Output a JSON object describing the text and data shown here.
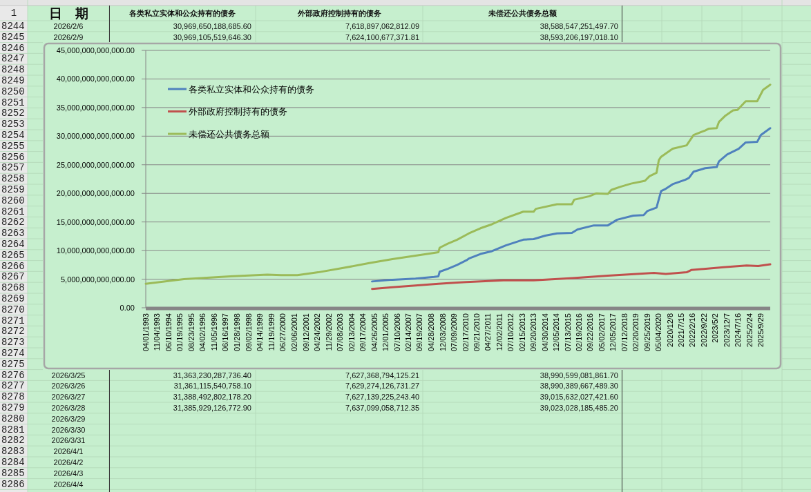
{
  "chart_data": {
    "type": "line",
    "xlim": [
      "1993-04-01",
      "2026-03-28"
    ],
    "xticks": [
      {
        "value": "1993-04-01",
        "label": "04/01/1993"
      },
      {
        "value": "1993-11-04",
        "label": "11/04/1993"
      },
      {
        "value": "1994-06-10",
        "label": "06/10/1994"
      },
      {
        "value": "1995-01-19",
        "label": "01/19/1995"
      },
      {
        "value": "1995-08-23",
        "label": "08/23/1995"
      },
      {
        "value": "1996-04-02",
        "label": "04/02/1996"
      },
      {
        "value": "1996-11-05",
        "label": "11/05/1996"
      },
      {
        "value": "1997-06-16",
        "label": "06/16/1997"
      },
      {
        "value": "1998-01-28",
        "label": "01/28/1998"
      },
      {
        "value": "1998-09-02",
        "label": "09/02/1998"
      },
      {
        "value": "1999-04-14",
        "label": "04/14/1999"
      },
      {
        "value": "1999-11-19",
        "label": "11/19/1999"
      },
      {
        "value": "2000-06-27",
        "label": "06/27/2000"
      },
      {
        "value": "2001-02-06",
        "label": "02/06/2001"
      },
      {
        "value": "2001-09-12",
        "label": "09/12/2001"
      },
      {
        "value": "2002-04-24",
        "label": "04/24/2002"
      },
      {
        "value": "2002-11-29",
        "label": "11/29/2002"
      },
      {
        "value": "2003-07-08",
        "label": "07/08/2003"
      },
      {
        "value": "2004-02-13",
        "label": "02/13/2004"
      },
      {
        "value": "2004-09-17",
        "label": "09/17/2004"
      },
      {
        "value": "2005-04-26",
        "label": "04/26/2005"
      },
      {
        "value": "2005-12-01",
        "label": "12/01/2005"
      },
      {
        "value": "2006-07-10",
        "label": "07/10/2006"
      },
      {
        "value": "2007-02-14",
        "label": "02/14/2007"
      },
      {
        "value": "2007-09-19",
        "label": "09/19/2007"
      },
      {
        "value": "2008-04-28",
        "label": "04/28/2008"
      },
      {
        "value": "2008-12-03",
        "label": "12/03/2008"
      },
      {
        "value": "2009-07-09",
        "label": "07/09/2009"
      },
      {
        "value": "2010-02-17",
        "label": "02/17/2010"
      },
      {
        "value": "2010-09-21",
        "label": "09/21/2010"
      },
      {
        "value": "2011-04-27",
        "label": "04/27/2011"
      },
      {
        "value": "2011-12-02",
        "label": "12/02/2011"
      },
      {
        "value": "2012-07-10",
        "label": "07/10/2012"
      },
      {
        "value": "2013-02-15",
        "label": "02/15/2013"
      },
      {
        "value": "2013-09-20",
        "label": "09/20/2013"
      },
      {
        "value": "2014-04-30",
        "label": "04/30/2014"
      },
      {
        "value": "2014-12-05",
        "label": "12/05/2014"
      },
      {
        "value": "2015-07-13",
        "label": "07/13/2015"
      },
      {
        "value": "2016-02-19",
        "label": "02/19/2016"
      },
      {
        "value": "2016-09-22",
        "label": "09/22/2016"
      },
      {
        "value": "2017-05-02",
        "label": "05/02/2017"
      },
      {
        "value": "2017-12-05",
        "label": "12/05/2017"
      },
      {
        "value": "2018-07-12",
        "label": "07/12/2018"
      },
      {
        "value": "2019-02-20",
        "label": "02/20/2019"
      },
      {
        "value": "2019-09-25",
        "label": "09/25/2019"
      },
      {
        "value": "2020-05-04",
        "label": "05/04/2020"
      },
      {
        "value": "2020-12-08",
        "label": "2020/12/8"
      },
      {
        "value": "2021-07-15",
        "label": "2021/7/15"
      },
      {
        "value": "2022-02-16",
        "label": "2022/2/16"
      },
      {
        "value": "2022-09-22",
        "label": "2022/9/22"
      },
      {
        "value": "2023-05-02",
        "label": "2023/5/2"
      },
      {
        "value": "2023-12-07",
        "label": "2023/12/7"
      },
      {
        "value": "2024-07-16",
        "label": "2024/7/16"
      },
      {
        "value": "2025-02-24",
        "label": "2025/2/24"
      },
      {
        "value": "2025-09-29",
        "label": "2025/9/29"
      }
    ],
    "ylim": [
      0,
      45000000000000
    ],
    "yticks": [
      {
        "value": 0,
        "label": "0.00"
      },
      {
        "value": 5000000000000,
        "label": "5,000,000,000,000.00"
      },
      {
        "value": 10000000000000,
        "label": "10,000,000,000,000.00"
      },
      {
        "value": 15000000000000,
        "label": "15,000,000,000,000.00"
      },
      {
        "value": 20000000000000,
        "label": "20,000,000,000,000.00"
      },
      {
        "value": 25000000000000,
        "label": "25,000,000,000,000.00"
      },
      {
        "value": 30000000000000,
        "label": "30,000,000,000,000.00"
      },
      {
        "value": 35000000000000,
        "label": "35,000,000,000,000.00"
      },
      {
        "value": 40000000000000,
        "label": "40,000,000,000,000.00"
      },
      {
        "value": 45000000000000,
        "label": "45,000,000,000,000.00"
      }
    ],
    "grid": "y",
    "legend": "top left",
    "series": [
      {
        "name": "各类私立实体和公众持有的债务",
        "color": "#4f81bd",
        "x": [
          "2005-03-15",
          "2006-04-12",
          "2007-07-02",
          "2008-06-25",
          "2008-09-15",
          "2008-10-10",
          "2009-03-15",
          "2009-09-13",
          "2010-03-10",
          "2010-04-27",
          "2010-12-06",
          "2011-07-16",
          "2012-04-08",
          "2013-03-11",
          "2013-09-27",
          "2014-05-08",
          "2014-12-20",
          "2015-10-05",
          "2016-01-22",
          "2016-12-02",
          "2017-08-29",
          "2018-02-24",
          "2019-01-01",
          "2019-07-20",
          "2019-09-28",
          "2020-03-25",
          "2020-06-21",
          "2020-09-20",
          "2021-01-30",
          "2021-10-05",
          "2021-12-10",
          "2022-03-11",
          "2022-10-20",
          "2023-05-30",
          "2023-07-13",
          "2023-12-17",
          "2024-07-27",
          "2024-12-09",
          "2025-07-19",
          "2025-09-27",
          "2026-03-28"
        ],
        "values": [
          4600000000000.0,
          4900000000000.0,
          5100000000000.0,
          5400000000000.0,
          5500000000000.0,
          6300000000000.0,
          6800000000000.0,
          7500000000000.0,
          8300000000000.0,
          8600000000000.0,
          9400000000000.0,
          9900000000000.0,
          10900000000000.0,
          11900000000000.0,
          12000000000000.0,
          12600000000000.0,
          13000000000000.0,
          13100000000000.0,
          13700000000000.0,
          14400000000000.0,
          14400000000000.0,
          15400000000000.0,
          16100000000000.0,
          16200000000000.0,
          16900000000000.0,
          17500000000000.0,
          20400000000000.0,
          20800000000000.0,
          21600000000000.0,
          22400000000000.0,
          22700000000000.0,
          23800000000000.0,
          24400000000000.0,
          24600000000000.0,
          25600000000000.0,
          26800000000000.0,
          27800000000000.0,
          28900000000000.0,
          29000000000000.0,
          30200000000000.0,
          31400000000000.0
        ]
      },
      {
        "name": "外部政府控制持有的债务",
        "color": "#c0504d",
        "x": [
          "2005-03-15",
          "2006-04-12",
          "2007-07-02",
          "2008-09-15",
          "2009-09-13",
          "2010-03-10",
          "2012-02-24",
          "2013-09-27",
          "2015-10-27",
          "2017-08-29",
          "2020-02-06",
          "2020-09-20",
          "2021-10-27",
          "2022-01-23",
          "2023-10-08",
          "2024-12-27",
          "2025-08-07",
          "2026-03-28"
        ],
        "values": [
          3300000000000.0,
          3600000000000.0,
          3900000000000.0,
          4200000000000.0,
          4400000000000.0,
          4500000000000.0,
          4800000000000.0,
          4800000000000.0,
          5200000000000.0,
          5600000000000.0,
          6100000000000.0,
          5900000000000.0,
          6200000000000.0,
          6600000000000.0,
          7100000000000.0,
          7400000000000.0,
          7300000000000.0,
          7600000000000.0
        ]
      },
      {
        "name": "未偿还公共债务总额",
        "color": "#9bbb59",
        "x": [
          "1993-04-01",
          "1995-04-08",
          "1997-09-16",
          "1999-09-02",
          "2000-05-27",
          "2001-04-05",
          "2002-05-11",
          "2003-07-30",
          "2005-01-19",
          "2006-04-12",
          "2007-07-02",
          "2008-06-25",
          "2008-09-15",
          "2008-10-10",
          "2009-03-15",
          "2009-09-13",
          "2010-04-27",
          "2010-12-06",
          "2011-07-16",
          "2012-04-08",
          "2013-03-11",
          "2013-09-27",
          "2013-11-10",
          "2014-12-20",
          "2015-10-05",
          "2015-11-18",
          "2016-09-06",
          "2017-01-19",
          "2017-08-29",
          "2017-11-03",
          "2018-04-09",
          "2018-11-18",
          "2019-06-28",
          "2019-08-15",
          "2019-11-10",
          "2020-03-25",
          "2020-05-08",
          "2020-06-21",
          "2021-01-30",
          "2021-10-27",
          "2021-12-10",
          "2022-03-11",
          "2022-10-20",
          "2022-12-24",
          "2023-05-30",
          "2023-07-13",
          "2023-11-03",
          "2024-04-08",
          "2024-07-05",
          "2024-12-09",
          "2025-07-19",
          "2025-11-10",
          "2026-03-28"
        ],
        "values": [
          4200000000000.0,
          5000000000000.0,
          5500000000000.0,
          5800000000000.0,
          5700000000000.0,
          5700000000000.0,
          6200000000000.0,
          6900000000000.0,
          7800000000000.0,
          8500000000000.0,
          9100000000000.0,
          9600000000000.0,
          9700000000000.0,
          10500000000000.0,
          11200000000000.0,
          11900000000000.0,
          13000000000000.0,
          13900000000000.0,
          14600000000000.0,
          15700000000000.0,
          16800000000000.0,
          16800000000000.0,
          17300000000000.0,
          18100000000000.0,
          18100000000000.0,
          18900000000000.0,
          19500000000000.0,
          20000000000000.0,
          19900000000000.0,
          20600000000000.0,
          21100000000000.0,
          21700000000000.0,
          22100000000000.0,
          22200000000000.0,
          23000000000000.0,
          23600000000000.0,
          25800000000000.0,
          26400000000000.0,
          27800000000000.0,
          28400000000000.0,
          29000000000000.0,
          30200000000000.0,
          31000000000000.0,
          31300000000000.0,
          31400000000000.0,
          32500000000000.0,
          33500000000000.0,
          34500000000000.0,
          34600000000000.0,
          36100000000000.0,
          36100000000000.0,
          38100000000000.0,
          39000000000000.0
        ]
      }
    ],
    "annotations": [
      "1",
      "日　期",
      "各类私立实体和公众持有的债务",
      "外部政府控制持有的债务",
      "未偿还公共债务总额",
      "8244",
      "2026/2/6",
      "30,969,650,188,685.60",
      "7,618,897,062,812.09",
      "38,588,547,251,497.70",
      "8245",
      "2026/2/9",
      "30,969,105,519,646.30",
      "7,624,100,677,371.81",
      "38,593,206,197,018.10",
      "8246",
      "8247",
      "8248",
      "8249",
      "8250",
      "8251",
      "8252",
      "8253",
      "8254",
      "8255",
      "8256",
      "8257",
      "8258",
      "8259",
      "8260",
      "8261",
      "8262",
      "8263",
      "8264",
      "8265",
      "8266",
      "8267",
      "8268",
      "8269",
      "8270",
      "8271",
      "8272",
      "8273",
      "8274",
      "8275",
      "8276",
      "2026/3/25",
      "31,363,230,287,736.40",
      "7,627,368,794,125.21",
      "38,990,599,081,861.70",
      "8277",
      "2026/3/26",
      "31,361,115,540,758.10",
      "7,629,274,126,731.27",
      "38,990,389,667,489.30",
      "8278",
      "2026/3/27",
      "31,388,492,802,178.20",
      "7,627,139,225,243.40",
      "39,015,632,027,421.60",
      "8279",
      "2026/3/28",
      "31,385,929,126,772.90",
      "7,637,099,058,712.35",
      "39,023,028,185,485.20",
      "8280",
      "2026/3/29",
      "8281",
      "2026/3/30",
      "8282",
      "2026/3/31",
      "8283",
      "2026/4/1",
      "8284",
      "2026/4/2",
      "8285",
      "2026/4/3",
      "8286",
      "2026/4/4"
    ]
  }
}
